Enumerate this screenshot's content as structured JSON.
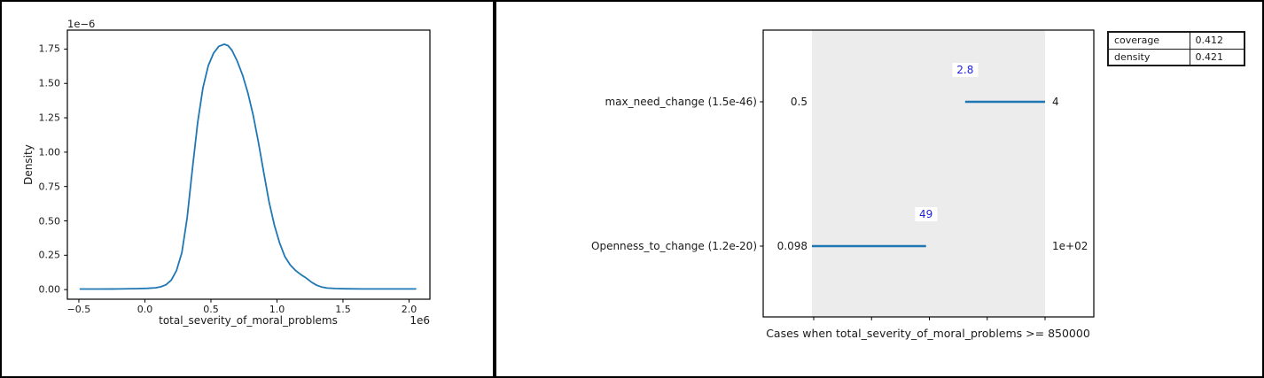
{
  "chart_data": [
    {
      "type": "line",
      "subtype": "kde-density-plot",
      "xlabel": "total_severity_of_moral_problems",
      "ylabel": "Density",
      "x_offset_label": "1e6",
      "y_offset_label": "1e−6",
      "grid": false,
      "line_color": "#1f77b4",
      "xlim": [
        -0.587,
        2.158
      ],
      "ylim": [
        -0.07,
        1.888
      ],
      "xticks": {
        "values": [
          -0.5,
          0,
          0.5,
          1,
          1.5,
          2
        ],
        "labels": [
          "−0.5",
          "0.0",
          "0.5",
          "1.0",
          "1.5",
          "2.0"
        ]
      },
      "yticks": {
        "values": [
          0,
          0.25,
          0.5,
          0.75,
          1,
          1.25,
          1.5,
          1.75
        ],
        "labels": [
          "0.00",
          "0.25",
          "0.50",
          "0.75",
          "1.00",
          "1.25",
          "1.50",
          "1.75"
        ]
      },
      "x": [
        -0.49,
        -0.35,
        -0.2,
        -0.05,
        0.02,
        0.08,
        0.12,
        0.16,
        0.2,
        0.24,
        0.28,
        0.32,
        0.36,
        0.4,
        0.44,
        0.48,
        0.52,
        0.56,
        0.6,
        0.63,
        0.66,
        0.7,
        0.74,
        0.78,
        0.82,
        0.86,
        0.9,
        0.94,
        0.98,
        1.02,
        1.06,
        1.1,
        1.14,
        1.18,
        1.22,
        1.26,
        1.3,
        1.34,
        1.38,
        1.44,
        1.52,
        1.65,
        1.85,
        2.05
      ],
      "y": [
        0.004,
        0.004,
        0.005,
        0.007,
        0.009,
        0.013,
        0.02,
        0.035,
        0.07,
        0.14,
        0.27,
        0.52,
        0.88,
        1.22,
        1.47,
        1.63,
        1.72,
        1.77,
        1.785,
        1.775,
        1.74,
        1.66,
        1.56,
        1.43,
        1.27,
        1.07,
        0.85,
        0.64,
        0.47,
        0.34,
        0.24,
        0.18,
        0.14,
        0.11,
        0.085,
        0.055,
        0.032,
        0.018,
        0.011,
        0.008,
        0.006,
        0.005,
        0.005,
        0.005
      ]
    },
    {
      "type": "intervals",
      "subtype": "rule-intervals-plot",
      "xlabel": "Cases when total_severity_of_moral_problems >= 850000",
      "band_color": "#ececec",
      "line_color": "#1f77b4",
      "annotation_color": "#2222dd",
      "xtick_count": 5,
      "rows": [
        {
          "label": "max_need_change (1.5e-46)",
          "range_min": 0.5,
          "range_max": 4,
          "interval_lo": 2.8,
          "interval_hi": 4,
          "min_label": "0.5",
          "max_label": "4",
          "annotation": "2.8",
          "annotation_value": 2.8
        },
        {
          "label": "Openness_to_change (1.2e-20)",
          "range_min": 0.098,
          "range_max": 100,
          "interval_lo": 0.098,
          "interval_hi": 49,
          "min_label": "0.098",
          "max_label": "1e+02",
          "annotation": "49",
          "annotation_value": 49
        }
      ],
      "stats_table": {
        "rows": [
          {
            "name": "coverage",
            "value": "0.412"
          },
          {
            "name": "density",
            "value": "0.421"
          }
        ]
      }
    }
  ]
}
